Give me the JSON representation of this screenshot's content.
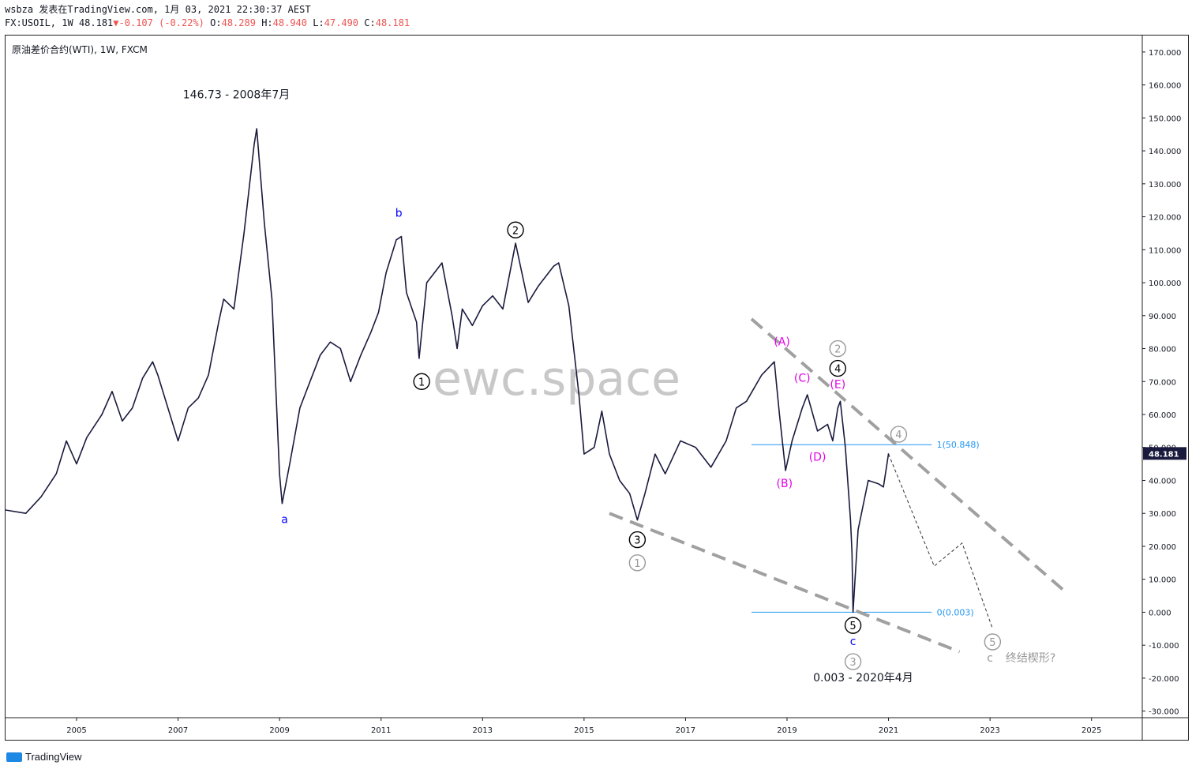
{
  "header": {
    "line1": "wsbza 发表在TradingView.com, 1月 03, 2021 22:30:37 AEST",
    "symbol": "FX:USOIL, 1W",
    "last": "48.181",
    "arrow": "▼",
    "change": "-0.107 (-0.22%)",
    "o_label": "O:",
    "o": "48.289",
    "h_label": "H:",
    "h": "48.940",
    "l_label": "L:",
    "l": "47.490",
    "c_label": "C:",
    "c": "48.181"
  },
  "chart_title": "原油差价合约(WTI), 1W, FXCM",
  "watermark": "ewc.space",
  "footer": {
    "brand": "TradingView"
  },
  "colors": {
    "price": "#1a1a3e",
    "blue": "#0000ff",
    "magenta": "#e600e6",
    "grey": "#999999",
    "fib": "#2196f3",
    "axis": "#131722"
  },
  "chart_data": {
    "type": "line",
    "title": "原油差价合约(WTI), 1W, FXCM",
    "x_ticks": [
      "2005",
      "2007",
      "2009",
      "2011",
      "2013",
      "2015",
      "2017",
      "2019",
      "2021",
      "2023",
      "2025"
    ],
    "y_ticks": [
      "170.000",
      "160.000",
      "150.000",
      "140.000",
      "130.000",
      "120.000",
      "110.000",
      "100.000",
      "90.000",
      "80.000",
      "70.000",
      "60.000",
      "50.000",
      "40.000",
      "30.000",
      "20.000",
      "10.000",
      "0.000",
      "-10.000",
      "-20.000",
      "-30.000"
    ],
    "ylim": [
      -32,
      175
    ],
    "xlim": [
      2003.6,
      2026.0
    ],
    "last_price": "48.181",
    "series": [
      {
        "points": [
          [
            2003.6,
            31
          ],
          [
            2004.0,
            30
          ],
          [
            2004.3,
            35
          ],
          [
            2004.6,
            42
          ],
          [
            2004.8,
            52
          ],
          [
            2005.0,
            45
          ],
          [
            2005.2,
            53
          ],
          [
            2005.5,
            60
          ],
          [
            2005.7,
            67
          ],
          [
            2005.9,
            58
          ],
          [
            2006.1,
            62
          ],
          [
            2006.3,
            71
          ],
          [
            2006.5,
            76
          ],
          [
            2006.6,
            72
          ],
          [
            2006.9,
            57
          ],
          [
            2007.0,
            52
          ],
          [
            2007.2,
            62
          ],
          [
            2007.4,
            65
          ],
          [
            2007.6,
            72
          ],
          [
            2007.8,
            88
          ],
          [
            2007.9,
            95
          ],
          [
            2008.1,
            92
          ],
          [
            2008.3,
            115
          ],
          [
            2008.5,
            142
          ],
          [
            2008.55,
            146.73
          ],
          [
            2008.7,
            118
          ],
          [
            2008.85,
            95
          ],
          [
            2009.0,
            42
          ],
          [
            2009.05,
            33
          ],
          [
            2009.2,
            45
          ],
          [
            2009.4,
            62
          ],
          [
            2009.6,
            70
          ],
          [
            2009.8,
            78
          ],
          [
            2010.0,
            82
          ],
          [
            2010.2,
            80
          ],
          [
            2010.4,
            70
          ],
          [
            2010.6,
            78
          ],
          [
            2010.8,
            85
          ],
          [
            2010.95,
            91
          ],
          [
            2011.1,
            103
          ],
          [
            2011.3,
            113
          ],
          [
            2011.4,
            114
          ],
          [
            2011.5,
            97
          ],
          [
            2011.7,
            88
          ],
          [
            2011.75,
            77
          ],
          [
            2011.9,
            100
          ],
          [
            2012.0,
            102
          ],
          [
            2012.2,
            106
          ],
          [
            2012.4,
            90
          ],
          [
            2012.5,
            80
          ],
          [
            2012.6,
            92
          ],
          [
            2012.8,
            87
          ],
          [
            2013.0,
            93
          ],
          [
            2013.2,
            96
          ],
          [
            2013.4,
            92
          ],
          [
            2013.6,
            108
          ],
          [
            2013.65,
            112
          ],
          [
            2013.9,
            94
          ],
          [
            2014.1,
            99
          ],
          [
            2014.4,
            105
          ],
          [
            2014.5,
            106
          ],
          [
            2014.7,
            93
          ],
          [
            2014.9,
            66
          ],
          [
            2015.0,
            48
          ],
          [
            2015.2,
            50
          ],
          [
            2015.35,
            61
          ],
          [
            2015.5,
            48
          ],
          [
            2015.7,
            40
          ],
          [
            2015.9,
            36
          ],
          [
            2016.05,
            28
          ],
          [
            2016.2,
            36
          ],
          [
            2016.4,
            48
          ],
          [
            2016.6,
            42
          ],
          [
            2016.9,
            52
          ],
          [
            2017.2,
            50
          ],
          [
            2017.5,
            44
          ],
          [
            2017.8,
            52
          ],
          [
            2018.0,
            62
          ],
          [
            2018.2,
            64
          ],
          [
            2018.5,
            72
          ],
          [
            2018.75,
            76
          ],
          [
            2018.85,
            60
          ],
          [
            2018.97,
            43
          ],
          [
            2019.1,
            52
          ],
          [
            2019.3,
            62
          ],
          [
            2019.4,
            66
          ],
          [
            2019.6,
            55
          ],
          [
            2019.8,
            57
          ],
          [
            2019.9,
            52
          ],
          [
            2020.0,
            62
          ],
          [
            2020.05,
            64
          ],
          [
            2020.15,
            50
          ],
          [
            2020.25,
            28
          ],
          [
            2020.28,
            18
          ],
          [
            2020.3,
            0.003
          ],
          [
            2020.4,
            25
          ],
          [
            2020.6,
            40
          ],
          [
            2020.8,
            39
          ],
          [
            2020.9,
            38
          ],
          [
            2021.0,
            48.181
          ]
        ]
      }
    ],
    "annotations": [
      {
        "text": "146.73 - 2008年7月",
        "x": 2008.15,
        "y": 156,
        "color": "#131722"
      },
      {
        "text": "0.003 - 2020年4月",
        "x": 2020.5,
        "y": -21,
        "color": "#131722"
      },
      {
        "text": "a",
        "x": 2009.1,
        "y": 27,
        "color": "#0000ff"
      },
      {
        "text": "b",
        "x": 2011.35,
        "y": 120,
        "color": "#0000ff"
      },
      {
        "text": "c",
        "x": 2020.3,
        "y": -10,
        "color": "#0000ff"
      },
      {
        "text": "(A)",
        "x": 2018.9,
        "y": 81,
        "color": "#e600e6"
      },
      {
        "text": "(B)",
        "x": 2018.95,
        "y": 38,
        "color": "#e600e6"
      },
      {
        "text": "(C)",
        "x": 2019.3,
        "y": 70,
        "color": "#e600e6"
      },
      {
        "text": "(D)",
        "x": 2019.6,
        "y": 46,
        "color": "#e600e6"
      },
      {
        "text": "(E)",
        "x": 2020.0,
        "y": 68,
        "color": "#e600e6"
      },
      {
        "text": "c",
        "x": 2023.0,
        "y": -15,
        "color": "#999999"
      },
      {
        "text": "终结楔形?",
        "x": 2023.8,
        "y": -15,
        "color": "#999999"
      }
    ],
    "wave_labels": [
      {
        "text": "1",
        "x": 2011.8,
        "y": 70,
        "style": "black"
      },
      {
        "text": "2",
        "x": 2013.65,
        "y": 116,
        "style": "black"
      },
      {
        "text": "3",
        "x": 2016.05,
        "y": 22,
        "style": "black"
      },
      {
        "text": "4",
        "x": 2020.0,
        "y": 74,
        "style": "black"
      },
      {
        "text": "5",
        "x": 2020.3,
        "y": -4,
        "style": "black"
      },
      {
        "text": "1",
        "x": 2016.05,
        "y": 15,
        "style": "grey"
      },
      {
        "text": "2",
        "x": 2020.0,
        "y": 80,
        "style": "grey"
      },
      {
        "text": "3",
        "x": 2020.3,
        "y": -15,
        "style": "grey"
      },
      {
        "text": "4",
        "x": 2021.2,
        "y": 54,
        "style": "grey"
      },
      {
        "text": "5",
        "x": 2023.05,
        "y": -9,
        "style": "grey"
      }
    ],
    "fib_levels": [
      {
        "label": "1(50.848)",
        "value": 50.848
      },
      {
        "label": "0(0.003)",
        "value": 0.003
      }
    ],
    "trendlines_dashed": [
      {
        "from": [
          2015.5,
          30
        ],
        "to": [
          2022.4,
          -12
        ]
      },
      {
        "from": [
          2018.3,
          89
        ],
        "to": [
          2024.5,
          6
        ]
      }
    ],
    "projection": [
      [
        2021.0,
        48
      ],
      [
        2021.9,
        14
      ],
      [
        2022.45,
        21
      ],
      [
        2023.05,
        -5
      ]
    ]
  }
}
